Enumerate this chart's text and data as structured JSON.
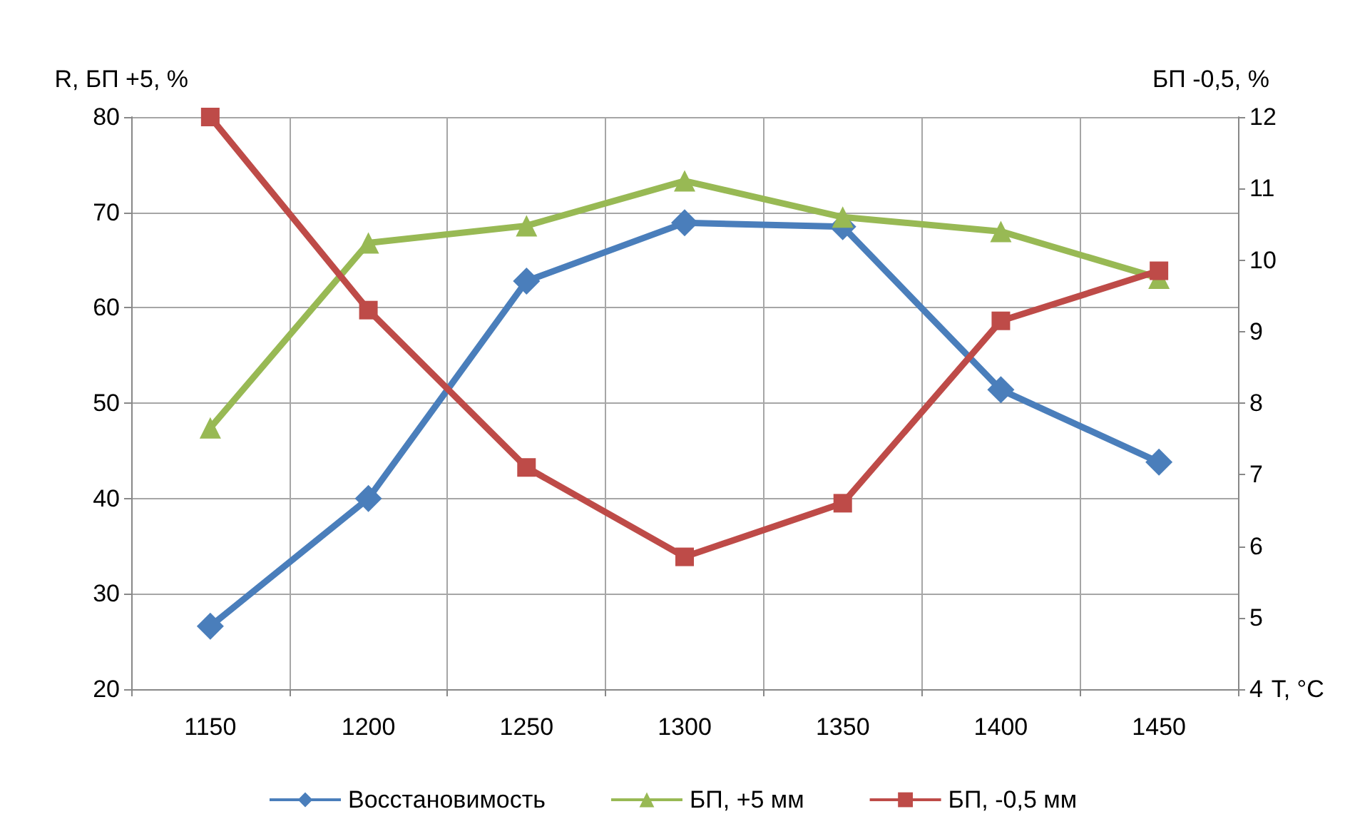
{
  "chart_data": {
    "type": "line",
    "xlabel": "T, °C",
    "ylabel": "R, БП +5, %",
    "y2label": "БП -0,5, %",
    "categories": [
      "1150",
      "1200",
      "1250",
      "1300",
      "1350",
      "1400",
      "1450"
    ],
    "series": [
      {
        "name": "Восстановимость",
        "color": "#4a7ebb",
        "marker": "diamond",
        "values": [
          26.6,
          40,
          62.8,
          68.9,
          68.5,
          51.4,
          43.8
        ]
      },
      {
        "name": "БП, +5 мм",
        "color": "#98b954",
        "marker": "triangle",
        "values": [
          47.4,
          66.8,
          68.6,
          73.3,
          69.5,
          68,
          63.1
        ]
      },
      {
        "name": "БП, -0,5 мм",
        "color": "#be4b48",
        "marker": "square",
        "axis": "y2",
        "values": [
          12,
          9.3,
          7.1,
          5.85,
          6.6,
          9.15,
          9.85
        ]
      }
    ],
    "ylim": [
      20,
      80
    ],
    "yticks": [
      20,
      30,
      40,
      50,
      60,
      70,
      80
    ],
    "y2lim": [
      4,
      12
    ],
    "y2ticks": [
      4,
      5,
      6,
      7,
      8,
      9,
      10,
      11,
      12
    ],
    "grid": true,
    "legend": "bottom"
  }
}
